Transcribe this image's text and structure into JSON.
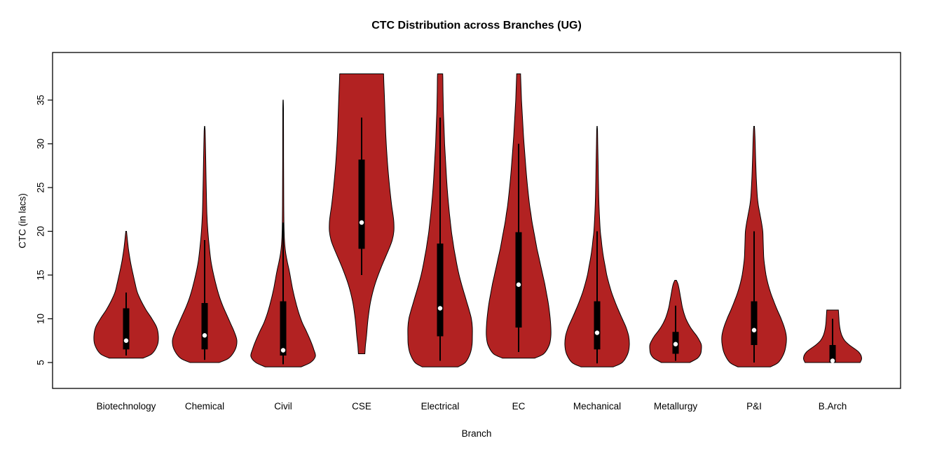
{
  "chart_data": {
    "type": "violin",
    "title": "CTC Distribution across Branches (UG)",
    "xlabel": "Branch",
    "ylabel": "CTC (in lacs)",
    "y_ticks": [
      5,
      10,
      15,
      20,
      25,
      30,
      35
    ],
    "ylim": [
      4.3,
      38.5
    ],
    "fill_color": "#b22222",
    "outline_color": "#000000",
    "box_color": "#000000",
    "median_dot_color": "#ffffff",
    "legend": "none",
    "grid": false,
    "categories": [
      "Biotechnology",
      "Chemical",
      "Civil",
      "CSE",
      "Electrical",
      "EC",
      "Mechanical",
      "Metallurgy",
      "P&I",
      "B.Arch"
    ],
    "violins": [
      {
        "branch": "Biotechnology",
        "min": 5.5,
        "max": 20,
        "q1": 6.5,
        "median": 7.5,
        "q3": 11.2,
        "whisker_low": 5.8,
        "whisker_high": 13,
        "width_scale": 1,
        "profile": [
          [
            5.5,
            0.52
          ],
          [
            6,
            0.8
          ],
          [
            7,
            0.97
          ],
          [
            8,
            1.0
          ],
          [
            9,
            0.95
          ],
          [
            10,
            0.8
          ],
          [
            11,
            0.62
          ],
          [
            12,
            0.47
          ],
          [
            13,
            0.35
          ],
          [
            14,
            0.28
          ],
          [
            15,
            0.22
          ],
          [
            16,
            0.16
          ],
          [
            17,
            0.11
          ],
          [
            18,
            0.07
          ],
          [
            19,
            0.04
          ],
          [
            20,
            0.01
          ]
        ]
      },
      {
        "branch": "Chemical",
        "min": 5,
        "max": 32,
        "q1": 6.5,
        "median": 8.1,
        "q3": 11.8,
        "whisker_low": 5.3,
        "whisker_high": 19,
        "width_scale": 1,
        "profile": [
          [
            5,
            0.45
          ],
          [
            5.5,
            0.75
          ],
          [
            6.5,
            0.95
          ],
          [
            7.5,
            1.0
          ],
          [
            8.5,
            0.92
          ],
          [
            9.5,
            0.8
          ],
          [
            10.5,
            0.68
          ],
          [
            11.5,
            0.56
          ],
          [
            12.5,
            0.46
          ],
          [
            13.5,
            0.38
          ],
          [
            15,
            0.28
          ],
          [
            16.5,
            0.2
          ],
          [
            18,
            0.15
          ],
          [
            20,
            0.1
          ],
          [
            22,
            0.07
          ],
          [
            25,
            0.05
          ],
          [
            28,
            0.035
          ],
          [
            30,
            0.025
          ],
          [
            31.5,
            0.015
          ],
          [
            32,
            0.005
          ]
        ]
      },
      {
        "branch": "Civil",
        "min": 4.5,
        "max": 35,
        "q1": 5.8,
        "median": 6.4,
        "q3": 12,
        "whisker_low": 4.8,
        "whisker_high": 21,
        "width_scale": 1,
        "profile": [
          [
            4.5,
            0.55
          ],
          [
            5,
            0.85
          ],
          [
            5.7,
            1.0
          ],
          [
            6.5,
            0.95
          ],
          [
            7.5,
            0.85
          ],
          [
            8.5,
            0.73
          ],
          [
            9.5,
            0.6
          ],
          [
            10.5,
            0.5
          ],
          [
            11.5,
            0.42
          ],
          [
            12.5,
            0.35
          ],
          [
            13.5,
            0.29
          ],
          [
            14.5,
            0.24
          ],
          [
            15.5,
            0.19
          ],
          [
            16.5,
            0.13
          ],
          [
            17.5,
            0.08
          ],
          [
            18.5,
            0.05
          ],
          [
            20,
            0.03
          ],
          [
            23,
            0.02
          ],
          [
            27,
            0.015
          ],
          [
            31,
            0.012
          ],
          [
            34,
            0.01
          ],
          [
            35,
            0.005
          ]
        ]
      },
      {
        "branch": "CSE",
        "min": 6,
        "max": 38,
        "q1": 18,
        "median": 21,
        "q3": 28.2,
        "whisker_low": 15,
        "whisker_high": 33,
        "width_scale": 1,
        "profile": [
          [
            6,
            0.1
          ],
          [
            7,
            0.12
          ],
          [
            8,
            0.15
          ],
          [
            10,
            0.2
          ],
          [
            12,
            0.28
          ],
          [
            14,
            0.42
          ],
          [
            16,
            0.62
          ],
          [
            18,
            0.85
          ],
          [
            19,
            0.95
          ],
          [
            20,
            1.0
          ],
          [
            21,
            1.0
          ],
          [
            22,
            0.97
          ],
          [
            23,
            0.93
          ],
          [
            25,
            0.87
          ],
          [
            27,
            0.82
          ],
          [
            29,
            0.78
          ],
          [
            31,
            0.75
          ],
          [
            33,
            0.73
          ],
          [
            35,
            0.71
          ],
          [
            37,
            0.69
          ],
          [
            38,
            0.68
          ]
        ]
      },
      {
        "branch": "Electrical",
        "min": 4.5,
        "max": 38,
        "q1": 8,
        "median": 11.2,
        "q3": 18.6,
        "whisker_low": 5.2,
        "whisker_high": 33,
        "width_scale": 1,
        "profile": [
          [
            4.5,
            0.55
          ],
          [
            5,
            0.78
          ],
          [
            6,
            0.93
          ],
          [
            7,
            0.99
          ],
          [
            8,
            1.0
          ],
          [
            9,
            1.0
          ],
          [
            10,
            0.97
          ],
          [
            11,
            0.9
          ],
          [
            12,
            0.82
          ],
          [
            13,
            0.74
          ],
          [
            14,
            0.66
          ],
          [
            15,
            0.59
          ],
          [
            16,
            0.53
          ],
          [
            17,
            0.48
          ],
          [
            18,
            0.43
          ],
          [
            19,
            0.39
          ],
          [
            20,
            0.35
          ],
          [
            21,
            0.32
          ],
          [
            22,
            0.29
          ],
          [
            24,
            0.24
          ],
          [
            26,
            0.2
          ],
          [
            28,
            0.17
          ],
          [
            30,
            0.14
          ],
          [
            32,
            0.12
          ],
          [
            34,
            0.1
          ],
          [
            36,
            0.09
          ],
          [
            37.5,
            0.085
          ],
          [
            38,
            0.08
          ]
        ]
      },
      {
        "branch": "EC",
        "min": 5.5,
        "max": 38,
        "q1": 9,
        "median": 13.9,
        "q3": 19.9,
        "whisker_low": 6.2,
        "whisker_high": 30,
        "width_scale": 1,
        "profile": [
          [
            5.5,
            0.5
          ],
          [
            6,
            0.78
          ],
          [
            7,
            0.95
          ],
          [
            8,
            1.0
          ],
          [
            9,
            1.0
          ],
          [
            10,
            0.98
          ],
          [
            11,
            0.95
          ],
          [
            12,
            0.91
          ],
          [
            13,
            0.86
          ],
          [
            14,
            0.81
          ],
          [
            15,
            0.75
          ],
          [
            16,
            0.69
          ],
          [
            17,
            0.63
          ],
          [
            18,
            0.57
          ],
          [
            19,
            0.52
          ],
          [
            20,
            0.47
          ],
          [
            21,
            0.42
          ],
          [
            22,
            0.38
          ],
          [
            23,
            0.34
          ],
          [
            25,
            0.28
          ],
          [
            27,
            0.23
          ],
          [
            29,
            0.19
          ],
          [
            31,
            0.15
          ],
          [
            33,
            0.12
          ],
          [
            35,
            0.09
          ],
          [
            37,
            0.07
          ],
          [
            38,
            0.06
          ]
        ]
      },
      {
        "branch": "Mechanical",
        "min": 4.5,
        "max": 32,
        "q1": 6.5,
        "median": 8.4,
        "q3": 12,
        "whisker_low": 4.9,
        "whisker_high": 20,
        "width_scale": 1,
        "profile": [
          [
            4.5,
            0.5
          ],
          [
            5,
            0.78
          ],
          [
            6,
            0.95
          ],
          [
            7,
            1.0
          ],
          [
            8,
            0.98
          ],
          [
            9,
            0.9
          ],
          [
            10,
            0.78
          ],
          [
            11,
            0.66
          ],
          [
            12,
            0.55
          ],
          [
            13,
            0.45
          ],
          [
            14,
            0.37
          ],
          [
            15,
            0.3
          ],
          [
            16,
            0.25
          ],
          [
            17,
            0.2
          ],
          [
            18,
            0.16
          ],
          [
            19,
            0.13
          ],
          [
            20,
            0.1
          ],
          [
            22,
            0.07
          ],
          [
            24,
            0.05
          ],
          [
            26,
            0.04
          ],
          [
            28,
            0.03
          ],
          [
            30,
            0.02
          ],
          [
            31.5,
            0.012
          ],
          [
            32,
            0.005
          ]
        ]
      },
      {
        "branch": "Metallurgy",
        "min": 5,
        "max": 14.4,
        "q1": 6,
        "median": 7.1,
        "q3": 8.5,
        "whisker_low": 5.2,
        "whisker_high": 11.5,
        "width_scale": 0.8,
        "profile": [
          [
            5,
            0.55
          ],
          [
            5.5,
            0.85
          ],
          [
            6,
            0.97
          ],
          [
            6.5,
            1.0
          ],
          [
            7,
            1.0
          ],
          [
            7.5,
            0.93
          ],
          [
            8,
            0.83
          ],
          [
            8.5,
            0.7
          ],
          [
            9,
            0.58
          ],
          [
            9.5,
            0.48
          ],
          [
            10,
            0.4
          ],
          [
            10.5,
            0.34
          ],
          [
            11,
            0.29
          ],
          [
            11.5,
            0.25
          ],
          [
            12,
            0.22
          ],
          [
            12.5,
            0.19
          ],
          [
            13,
            0.16
          ],
          [
            13.5,
            0.13
          ],
          [
            14,
            0.09
          ],
          [
            14.4,
            0.03
          ]
        ]
      },
      {
        "branch": "P&I",
        "min": 4.5,
        "max": 32,
        "q1": 7,
        "median": 8.7,
        "q3": 12,
        "whisker_low": 5,
        "whisker_high": 20,
        "width_scale": 1,
        "profile": [
          [
            4.5,
            0.5
          ],
          [
            5,
            0.75
          ],
          [
            6,
            0.92
          ],
          [
            7,
            0.99
          ],
          [
            8,
            1.0
          ],
          [
            9,
            0.94
          ],
          [
            10,
            0.84
          ],
          [
            11,
            0.72
          ],
          [
            12,
            0.61
          ],
          [
            13,
            0.51
          ],
          [
            14,
            0.43
          ],
          [
            15,
            0.37
          ],
          [
            16,
            0.33
          ],
          [
            17,
            0.3
          ],
          [
            18,
            0.29
          ],
          [
            19,
            0.28
          ],
          [
            20,
            0.27
          ],
          [
            21,
            0.23
          ],
          [
            22,
            0.18
          ],
          [
            23,
            0.13
          ],
          [
            24,
            0.1
          ],
          [
            26,
            0.07
          ],
          [
            28,
            0.05
          ],
          [
            30,
            0.035
          ],
          [
            31.5,
            0.02
          ],
          [
            32,
            0.01
          ]
        ]
      },
      {
        "branch": "B.Arch",
        "min": 5,
        "max": 11,
        "q1": 5,
        "median": 5.2,
        "q3": 7,
        "whisker_low": 5,
        "whisker_high": 10,
        "width_scale": 0.9,
        "profile": [
          [
            5,
            0.95
          ],
          [
            5.4,
            1.0
          ],
          [
            5.8,
            0.98
          ],
          [
            6.2,
            0.9
          ],
          [
            6.6,
            0.75
          ],
          [
            7,
            0.58
          ],
          [
            7.5,
            0.42
          ],
          [
            8,
            0.33
          ],
          [
            8.5,
            0.28
          ],
          [
            9,
            0.25
          ],
          [
            9.5,
            0.23
          ],
          [
            10,
            0.22
          ],
          [
            10.5,
            0.21
          ],
          [
            11,
            0.2
          ]
        ]
      }
    ]
  }
}
